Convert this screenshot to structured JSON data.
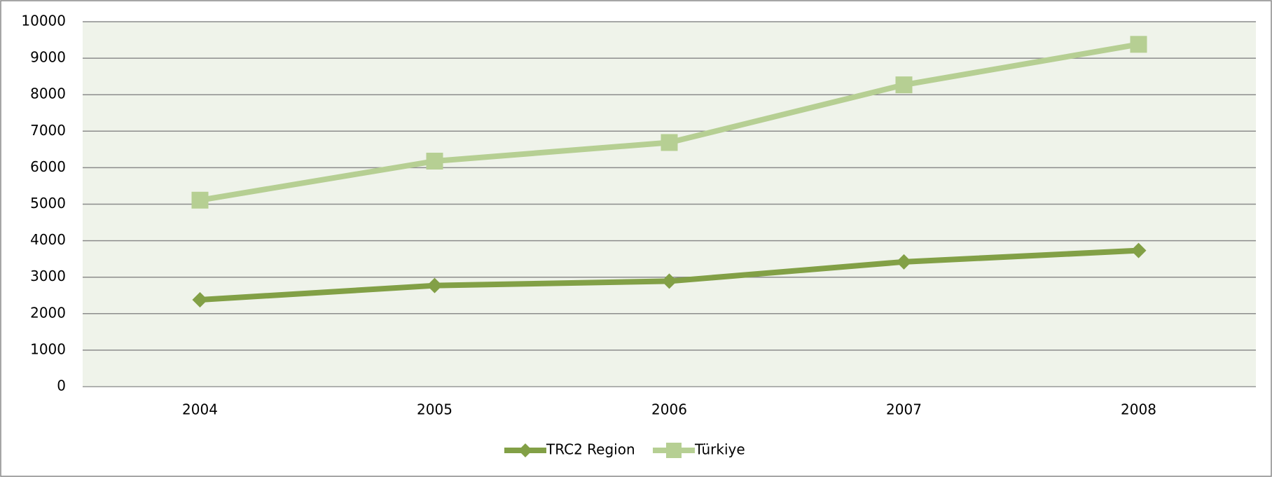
{
  "chart_data": {
    "type": "line",
    "categories": [
      "2004",
      "2005",
      "2006",
      "2007",
      "2008"
    ],
    "series": [
      {
        "name": "TRC2 Region",
        "color": "#82a046",
        "marker": "diamond",
        "values": [
          2380,
          2770,
          2890,
          3420,
          3730
        ]
      },
      {
        "name": "Türkiye",
        "color": "#b6cf93",
        "marker": "square",
        "values": [
          5110,
          6180,
          6690,
          8270,
          9380
        ]
      }
    ],
    "ylim": [
      0,
      10000
    ],
    "yticks": [
      0,
      1000,
      2000,
      3000,
      4000,
      5000,
      6000,
      7000,
      8000,
      9000,
      10000
    ],
    "grid": true,
    "legend": "bottom"
  }
}
